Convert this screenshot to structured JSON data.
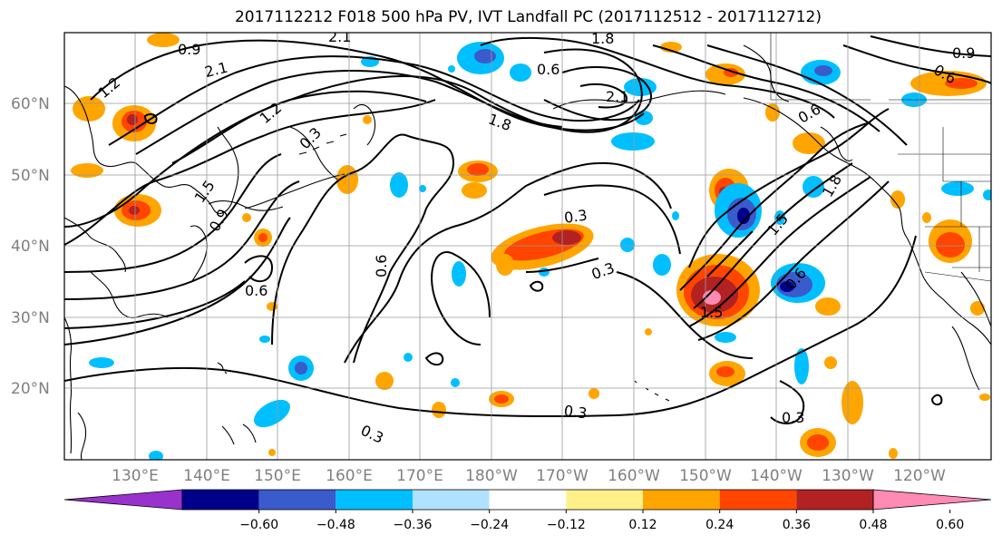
{
  "title": "2017112212 F018 500 hPa PV, IVT Landfall PC (2017112512 - 2017112712)",
  "lat_labels": [
    "60°N",
    "50°N",
    "40°N",
    "30°N",
    "20°N"
  ],
  "lon_labels": [
    "130°E",
    "140°E",
    "150°E",
    "160°E",
    "170°E",
    "180°W",
    "170°W",
    "160°W",
    "150°W",
    "140°W",
    "130°W",
    "120°W"
  ],
  "colorbar": {
    "colors": [
      "#9932cc",
      "#00008b",
      "#3a5bcc",
      "#00bfff",
      "#b0e2ff",
      "#ffffff",
      "#fff08a",
      "#ffa500",
      "#ff4500",
      "#b22222",
      "#ff8ab4"
    ],
    "ticks": [
      "−0.60",
      "−0.48",
      "−0.36",
      "−0.24",
      "−0.12",
      "0.12",
      "0.24",
      "0.36",
      "0.48",
      "0.60"
    ]
  },
  "contour_labels": [
    "0.9",
    "2.1",
    "1.2",
    "2.1",
    "0.6",
    "1.8",
    "0.9",
    "0.6",
    "1.2",
    "0.3",
    "1.8",
    "2.1",
    "1.5",
    "0.9",
    "0.6",
    "0.3",
    "0.3",
    "0.6",
    "0.6",
    "1.5",
    "1.5",
    "1.8",
    "0.6",
    "0.3",
    "0.3",
    "0.3"
  ]
}
